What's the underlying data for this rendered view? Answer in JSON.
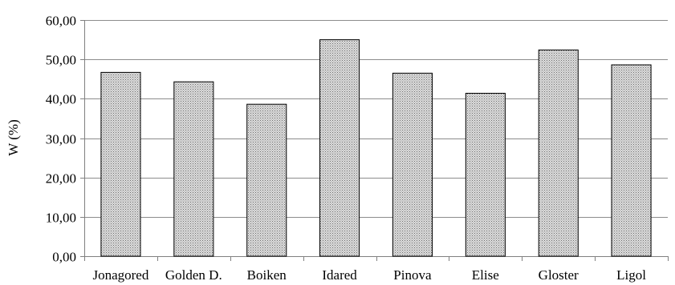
{
  "chart_data": {
    "type": "bar",
    "title": "",
    "xlabel": "",
    "ylabel": "W (%)",
    "categories": [
      "Jonagored",
      "Golden D.",
      "Boiken",
      "Idared",
      "Pinova",
      "Elise",
      "Gloster",
      "Ligol"
    ],
    "values": [
      46.7,
      44.3,
      38.6,
      55.0,
      46.5,
      41.4,
      52.4,
      48.6
    ],
    "ylim": [
      0,
      60
    ],
    "yticks": [
      0,
      10,
      20,
      30,
      40,
      50,
      60
    ],
    "ytick_labels": [
      "0,00",
      "10,00",
      "20,00",
      "30,00",
      "40,00",
      "50,00",
      "60,00"
    ],
    "grid": true,
    "legend": "none",
    "colors": {
      "bar_fill": "#dcdcdc",
      "bar_dots": "#6e6e6e",
      "bar_edge": "#000000",
      "gridline": "#8c8c8c"
    }
  }
}
